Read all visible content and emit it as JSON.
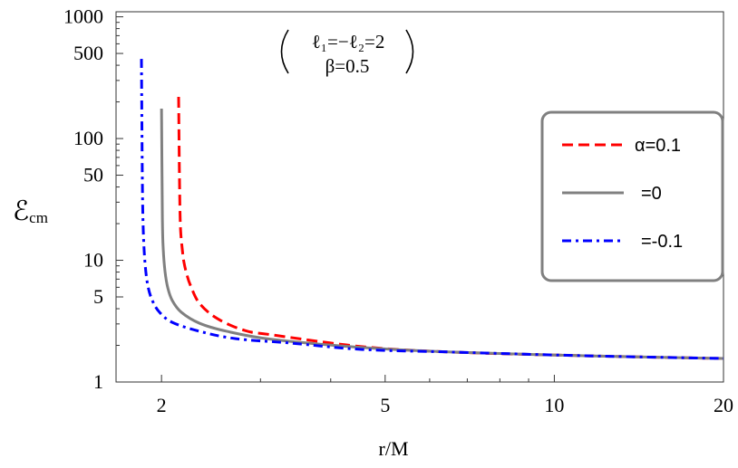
{
  "chart_data": {
    "type": "line",
    "title": "",
    "xlabel": "r/M",
    "ylabel": {
      "main": "ℰ",
      "sub": "cm"
    },
    "x_scale": "log",
    "y_scale": "log",
    "xlim": [
      1.66,
      20
    ],
    "ylim": [
      1,
      1100
    ],
    "xticks": [
      2,
      5,
      10,
      20
    ],
    "yticks": [
      1,
      5,
      10,
      50,
      100,
      500,
      1000
    ],
    "grid": false,
    "legend": "right",
    "annotation": {
      "line1": "ℓ₁=−ℓ₂=2",
      "line2": "β=0.5"
    },
    "series": [
      {
        "name": "α=0.1",
        "color": "#ff0000",
        "style": "dashed",
        "x": [
          2.145,
          2.153,
          2.161,
          2.177,
          2.193,
          2.218,
          2.251,
          2.336,
          2.516,
          2.813,
          3.145,
          4.56,
          6.61,
          11.5,
          20
        ],
        "y": [
          220,
          44.7,
          19.0,
          12.4,
          9.58,
          7.67,
          6.25,
          4.43,
          3.31,
          2.65,
          2.44,
          1.95,
          1.76,
          1.64,
          1.56
        ]
      },
      {
        "name": "=0",
        "color": "#808080",
        "style": "solid",
        "x": [
          2.0,
          2.007,
          2.014,
          2.029,
          2.052,
          2.09,
          2.169,
          2.336,
          2.612,
          3.145,
          4.56,
          6.61,
          11.5,
          20
        ],
        "y": [
          176,
          22.6,
          12.4,
          8.07,
          5.93,
          4.67,
          3.74,
          3.04,
          2.61,
          2.24,
          1.92,
          1.76,
          1.64,
          1.56
        ]
      },
      {
        "name": "=-0.1",
        "color": "#0000ff",
        "style": "dash-dot",
        "x": [
          1.842,
          1.849,
          1.856,
          1.869,
          1.89,
          1.926,
          1.984,
          2.09,
          2.336,
          2.71,
          3.389,
          4.56,
          6.61,
          11.5,
          20
        ],
        "y": [
          451,
          44.7,
          17.4,
          9.58,
          6.25,
          4.67,
          3.74,
          3.09,
          2.61,
          2.27,
          2.09,
          1.85,
          1.76,
          1.64,
          1.56
        ]
      }
    ]
  }
}
